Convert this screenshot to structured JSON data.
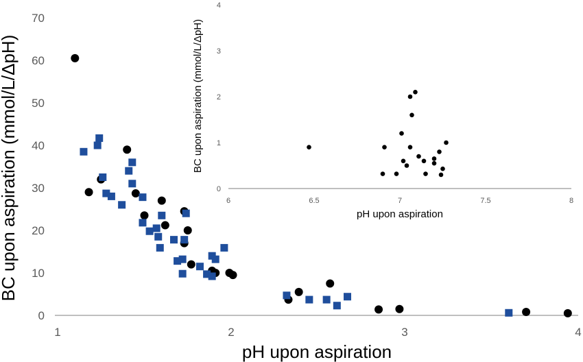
{
  "chart_data": [
    {
      "type": "scatter",
      "xlabel": "pH upon aspiration",
      "ylabel": "BC upon aspiration (mmol/L/ΔpH)",
      "xlim": [
        1,
        4
      ],
      "ylim": [
        0,
        70
      ],
      "xticks": [
        "1",
        "2",
        "3",
        "4"
      ],
      "yticks": [
        "0",
        "10",
        "20",
        "30",
        "40",
        "50",
        "60",
        "70"
      ],
      "grid": false,
      "legend": "none",
      "series": [
        {
          "marker": "circle",
          "color": "#000000",
          "points": [
            [
              1.1,
              60.5
            ],
            [
              1.18,
              29.0
            ],
            [
              1.25,
              32.0
            ],
            [
              1.4,
              39.0
            ],
            [
              1.45,
              28.7
            ],
            [
              1.5,
              23.5
            ],
            [
              1.6,
              27.0
            ],
            [
              1.62,
              21.2
            ],
            [
              1.73,
              24.5
            ],
            [
              1.73,
              17.0
            ],
            [
              1.75,
              20.0
            ],
            [
              1.77,
              12.0
            ],
            [
              1.89,
              10.5
            ],
            [
              1.91,
              10.0
            ],
            [
              1.99,
              10.0
            ],
            [
              2.01,
              9.5
            ],
            [
              2.33,
              3.7
            ],
            [
              2.39,
              5.5
            ],
            [
              2.57,
              7.5
            ],
            [
              2.85,
              1.4
            ],
            [
              2.97,
              1.5
            ],
            [
              3.7,
              0.8
            ],
            [
              3.94,
              0.5
            ]
          ]
        },
        {
          "marker": "square",
          "color": "#1f4e9c",
          "points": [
            [
              1.15,
              38.5
            ],
            [
              1.23,
              40.0
            ],
            [
              1.24,
              41.7
            ],
            [
              1.26,
              32.5
            ],
            [
              1.28,
              28.7
            ],
            [
              1.31,
              28.0
            ],
            [
              1.37,
              26.0
            ],
            [
              1.41,
              34.0
            ],
            [
              1.43,
              36.0
            ],
            [
              1.43,
              31.0
            ],
            [
              1.49,
              27.8
            ],
            [
              1.49,
              21.8
            ],
            [
              1.53,
              19.8
            ],
            [
              1.57,
              20.5
            ],
            [
              1.58,
              18.5
            ],
            [
              1.59,
              15.9
            ],
            [
              1.6,
              23.5
            ],
            [
              1.67,
              17.8
            ],
            [
              1.69,
              12.8
            ],
            [
              1.72,
              13.2
            ],
            [
              1.72,
              9.8
            ],
            [
              1.73,
              17.8
            ],
            [
              1.74,
              24.0
            ],
            [
              1.82,
              11.5
            ],
            [
              1.86,
              9.7
            ],
            [
              1.89,
              9.2
            ],
            [
              1.89,
              14.0
            ],
            [
              1.91,
              13.2
            ],
            [
              1.96,
              15.9
            ],
            [
              2.32,
              4.7
            ],
            [
              2.45,
              3.7
            ],
            [
              2.55,
              3.7
            ],
            [
              2.61,
              2.3
            ],
            [
              2.67,
              4.4
            ],
            [
              3.6,
              0.6
            ]
          ]
        }
      ]
    },
    {
      "type": "scatter",
      "xlabel": "pH upon aspiration",
      "ylabel": "BC upon aspiration (mmol/L/ΔpH)",
      "xlim": [
        6,
        8
      ],
      "ylim": [
        0,
        4
      ],
      "xticks": [
        "6",
        "6.5",
        "7",
        "7.5",
        "8"
      ],
      "yticks": [
        "0",
        "1",
        "2",
        "3",
        "4"
      ],
      "grid": false,
      "legend": "none",
      "series": [
        {
          "marker": "circle",
          "color": "#000000",
          "points": [
            [
              6.47,
              0.9
            ],
            [
              6.9,
              0.32
            ],
            [
              6.91,
              0.9
            ],
            [
              6.98,
              0.32
            ],
            [
              7.01,
              1.2
            ],
            [
              7.02,
              0.6
            ],
            [
              7.04,
              0.5
            ],
            [
              7.06,
              0.9
            ],
            [
              7.06,
              2.0
            ],
            [
              7.07,
              1.6
            ],
            [
              7.09,
              2.1
            ],
            [
              7.11,
              0.7
            ],
            [
              7.14,
              0.6
            ],
            [
              7.15,
              0.32
            ],
            [
              7.2,
              0.55
            ],
            [
              7.2,
              0.65
            ],
            [
              7.23,
              0.8
            ],
            [
              7.24,
              0.3
            ],
            [
              7.25,
              0.43
            ],
            [
              7.27,
              1.0
            ]
          ]
        }
      ]
    }
  ]
}
